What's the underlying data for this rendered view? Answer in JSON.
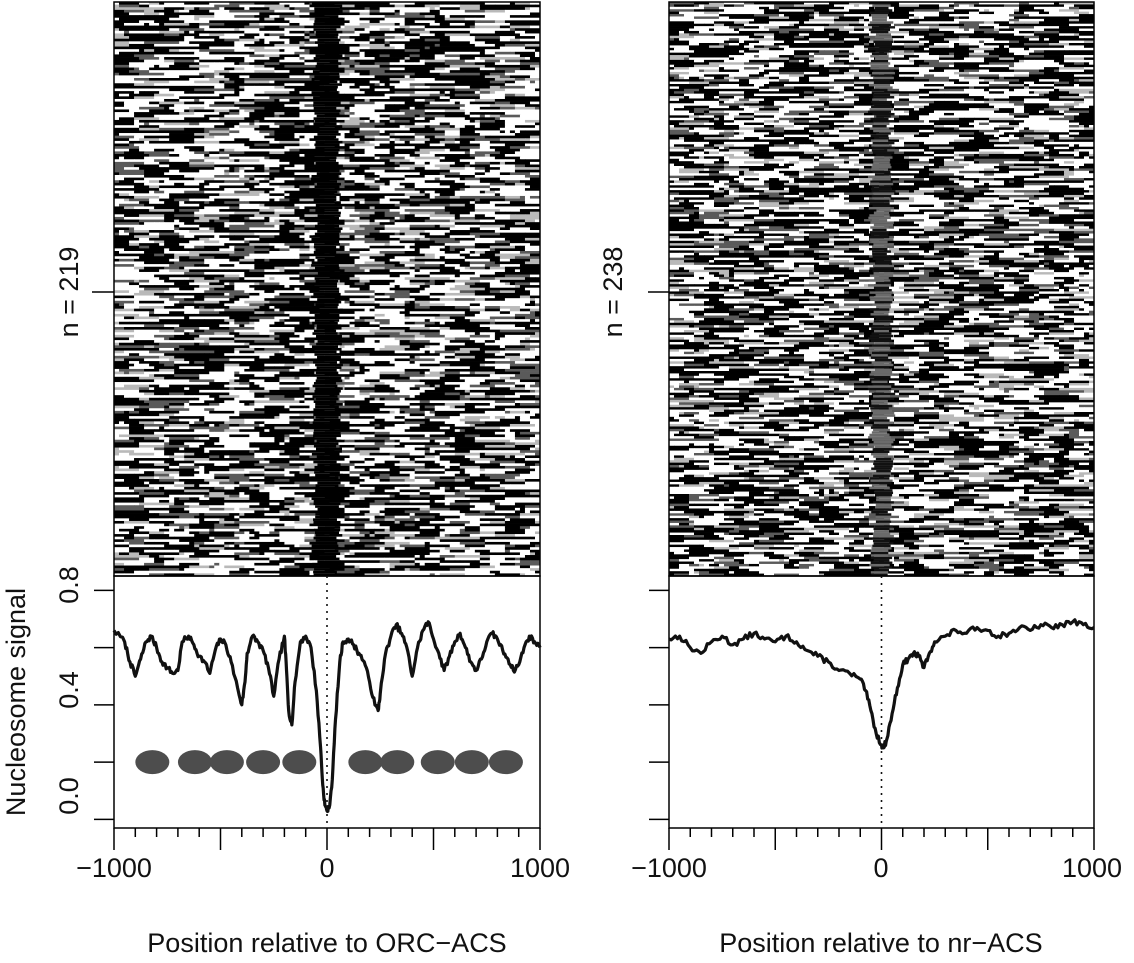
{
  "chart_data": [
    {
      "type": "heatmap",
      "panel": "left",
      "row_label": "n = 219",
      "rows": 219,
      "nucleosome_depleted_center": true,
      "profile": {
        "type": "line",
        "ylabel": "Nucleosome signal",
        "xlabel": "Position relative to ORC−ACS",
        "xlim": [
          -1000,
          1000
        ],
        "ylim": [
          -0.03,
          0.85
        ],
        "x_ticks": [
          "−1000",
          "0",
          "1000"
        ],
        "y_ticks": [
          "0.0",
          "0.4",
          "0.8"
        ],
        "reference_line_x": 0,
        "x": [
          -1000,
          -950,
          -925,
          -900,
          -875,
          -850,
          -825,
          -800,
          -775,
          -750,
          -725,
          -700,
          -680,
          -650,
          -625,
          -600,
          -575,
          -550,
          -525,
          -500,
          -475,
          -450,
          -420,
          -400,
          -385,
          -375,
          -350,
          -325,
          -300,
          -275,
          -250,
          -225,
          -200,
          -190,
          -180,
          -165,
          -150,
          -125,
          -100,
          -75,
          -50,
          -30,
          -20,
          -10,
          0,
          10,
          25,
          40,
          60,
          75,
          100,
          125,
          150,
          175,
          200,
          225,
          240,
          250,
          275,
          300,
          325,
          350,
          375,
          400,
          425,
          450,
          475,
          500,
          525,
          550,
          575,
          600,
          625,
          650,
          675,
          700,
          725,
          750,
          775,
          800,
          825,
          850,
          875,
          900,
          925,
          950,
          975,
          1000
        ],
        "y": [
          0.66,
          0.62,
          0.55,
          0.5,
          0.56,
          0.62,
          0.64,
          0.6,
          0.55,
          0.53,
          0.51,
          0.52,
          0.62,
          0.64,
          0.61,
          0.57,
          0.55,
          0.51,
          0.59,
          0.63,
          0.61,
          0.55,
          0.46,
          0.4,
          0.48,
          0.58,
          0.64,
          0.62,
          0.59,
          0.53,
          0.43,
          0.56,
          0.64,
          0.52,
          0.38,
          0.33,
          0.48,
          0.62,
          0.64,
          0.6,
          0.45,
          0.25,
          0.12,
          0.05,
          0.03,
          0.04,
          0.14,
          0.35,
          0.55,
          0.62,
          0.63,
          0.61,
          0.58,
          0.55,
          0.48,
          0.4,
          0.38,
          0.44,
          0.58,
          0.64,
          0.68,
          0.65,
          0.6,
          0.5,
          0.6,
          0.66,
          0.69,
          0.63,
          0.58,
          0.52,
          0.57,
          0.62,
          0.65,
          0.6,
          0.55,
          0.52,
          0.56,
          0.62,
          0.65,
          0.63,
          0.59,
          0.56,
          0.52,
          0.54,
          0.6,
          0.64,
          0.62,
          0.6
        ]
      },
      "nucleosome_positions": [
        -820,
        -620,
        -470,
        -300,
        -130,
        180,
        330,
        520,
        680,
        840
      ]
    },
    {
      "type": "heatmap",
      "panel": "right",
      "row_label": "n = 238",
      "rows": 238,
      "nucleosome_depleted_center": false,
      "profile": {
        "type": "line",
        "ylabel": "",
        "xlabel": "Position relative to nr−ACS",
        "xlim": [
          -1000,
          1000
        ],
        "ylim": [
          -0.03,
          0.85
        ],
        "x_ticks": [
          "−1000",
          "0",
          "1000"
        ],
        "y_ticks": [],
        "reference_line_x": 0,
        "x": [
          -1000,
          -950,
          -900,
          -850,
          -800,
          -750,
          -700,
          -650,
          -600,
          -550,
          -500,
          -450,
          -400,
          -350,
          -300,
          -250,
          -200,
          -150,
          -100,
          -75,
          -50,
          -25,
          0,
          10,
          25,
          50,
          75,
          100,
          125,
          150,
          175,
          200,
          225,
          250,
          300,
          350,
          400,
          450,
          500,
          550,
          600,
          650,
          700,
          750,
          800,
          850,
          900,
          950,
          1000
        ],
        "y": [
          0.63,
          0.64,
          0.6,
          0.58,
          0.62,
          0.64,
          0.61,
          0.63,
          0.65,
          0.63,
          0.62,
          0.64,
          0.62,
          0.59,
          0.57,
          0.55,
          0.52,
          0.51,
          0.49,
          0.45,
          0.38,
          0.3,
          0.26,
          0.25,
          0.28,
          0.37,
          0.46,
          0.54,
          0.56,
          0.58,
          0.57,
          0.53,
          0.58,
          0.62,
          0.64,
          0.66,
          0.65,
          0.67,
          0.66,
          0.64,
          0.65,
          0.67,
          0.66,
          0.68,
          0.67,
          0.68,
          0.69,
          0.68,
          0.67
        ]
      }
    }
  ]
}
